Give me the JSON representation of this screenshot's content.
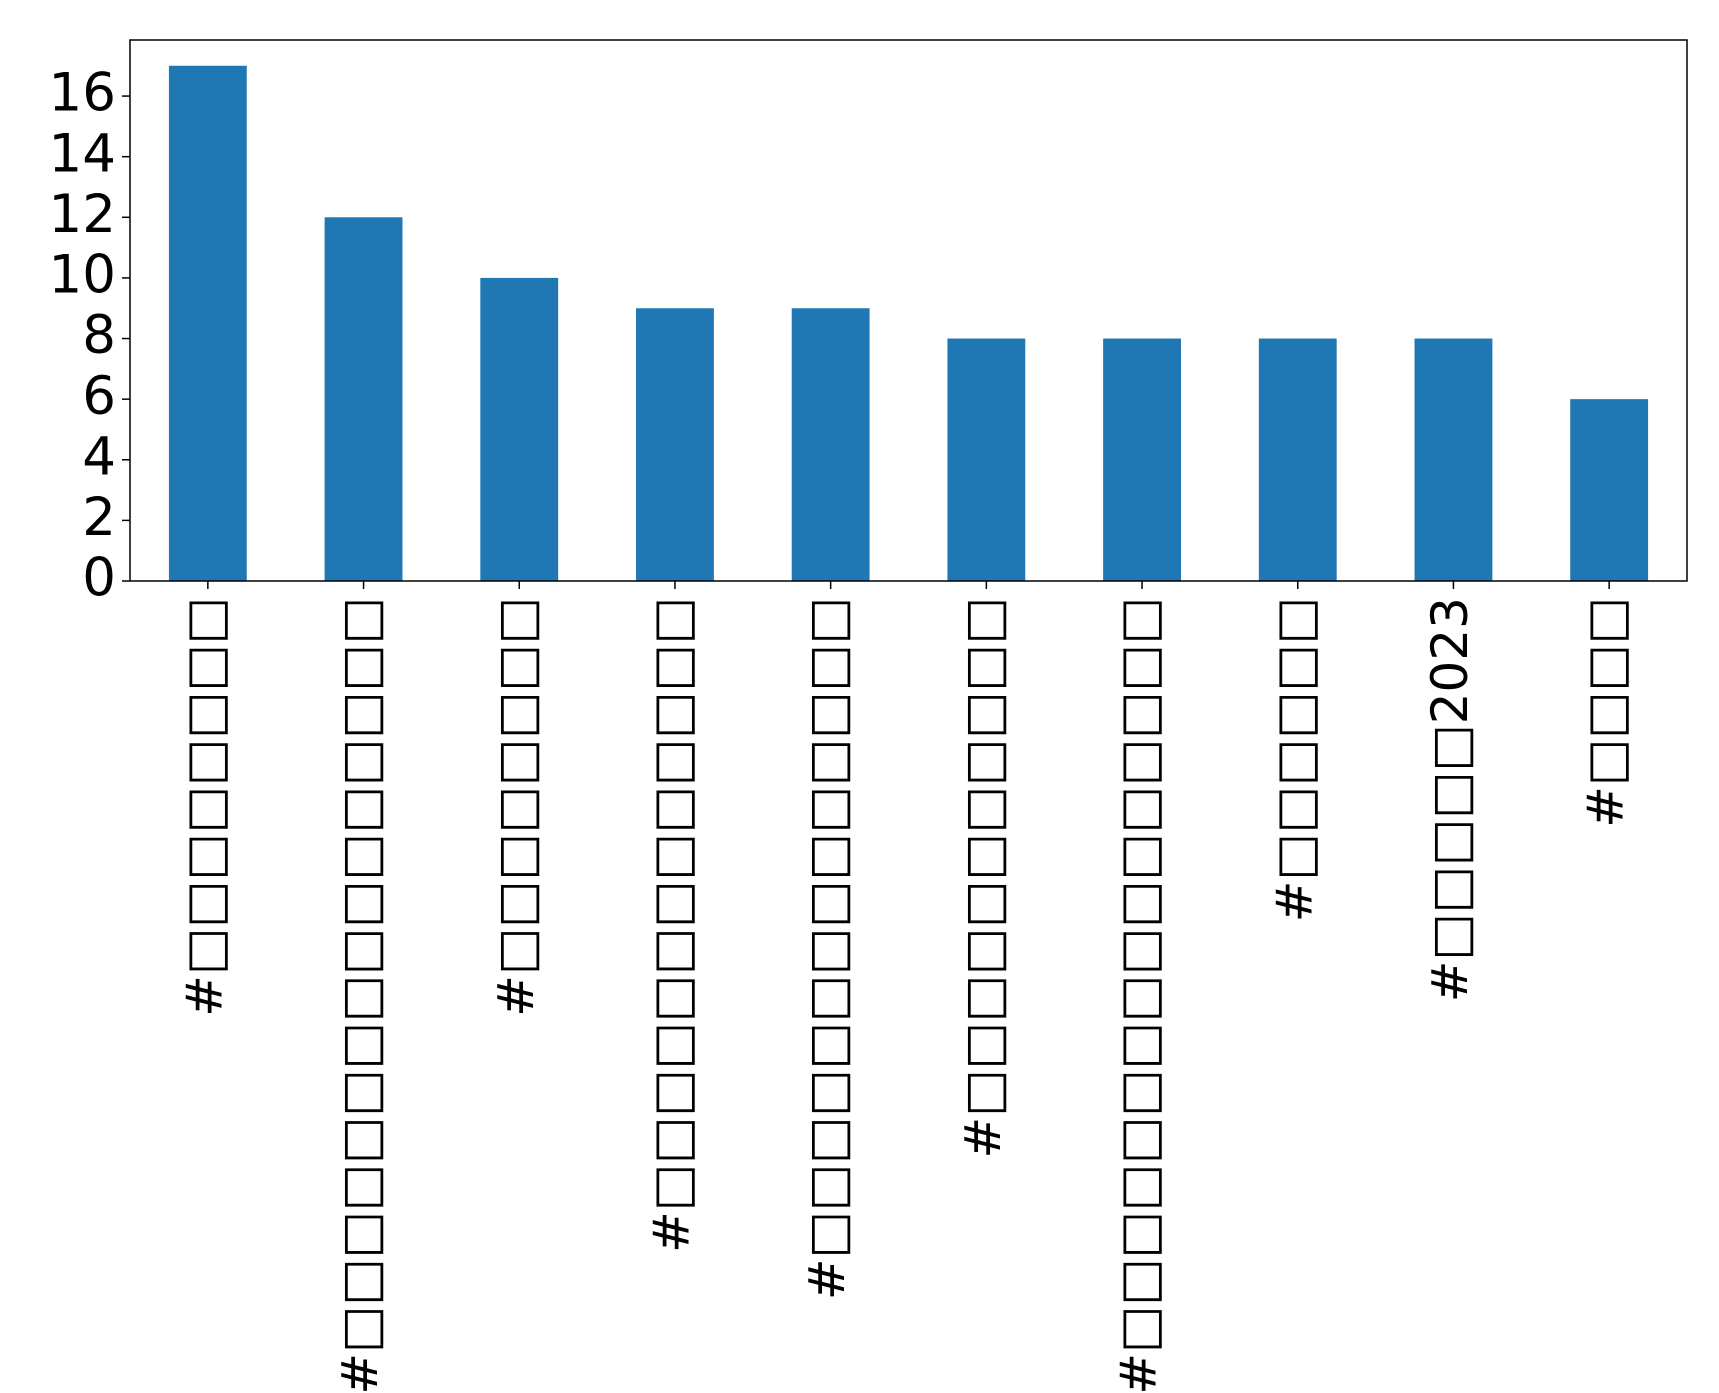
{
  "chart_data": {
    "type": "bar",
    "categories": [
      "#□□□□□□□□",
      "#□□□□□□□□□□□□□□□□",
      "#□□□□□□□□",
      "#□□□□□□□□□□□□□",
      "#□□□□□□□□□□□□□□",
      "#□□□□□□□□□□□",
      "#□□□□□□□□□□□□□□□□",
      "#□□□□□□",
      "#□□□□□2023",
      "#□□□□"
    ],
    "values": [
      17,
      12,
      10,
      9,
      9,
      8,
      8,
      8,
      8,
      6
    ],
    "color": "#1f77b4",
    "ylim": [
      0,
      17.85
    ],
    "yticks": [
      0,
      2,
      4,
      6,
      8,
      10,
      12,
      14,
      16
    ]
  }
}
